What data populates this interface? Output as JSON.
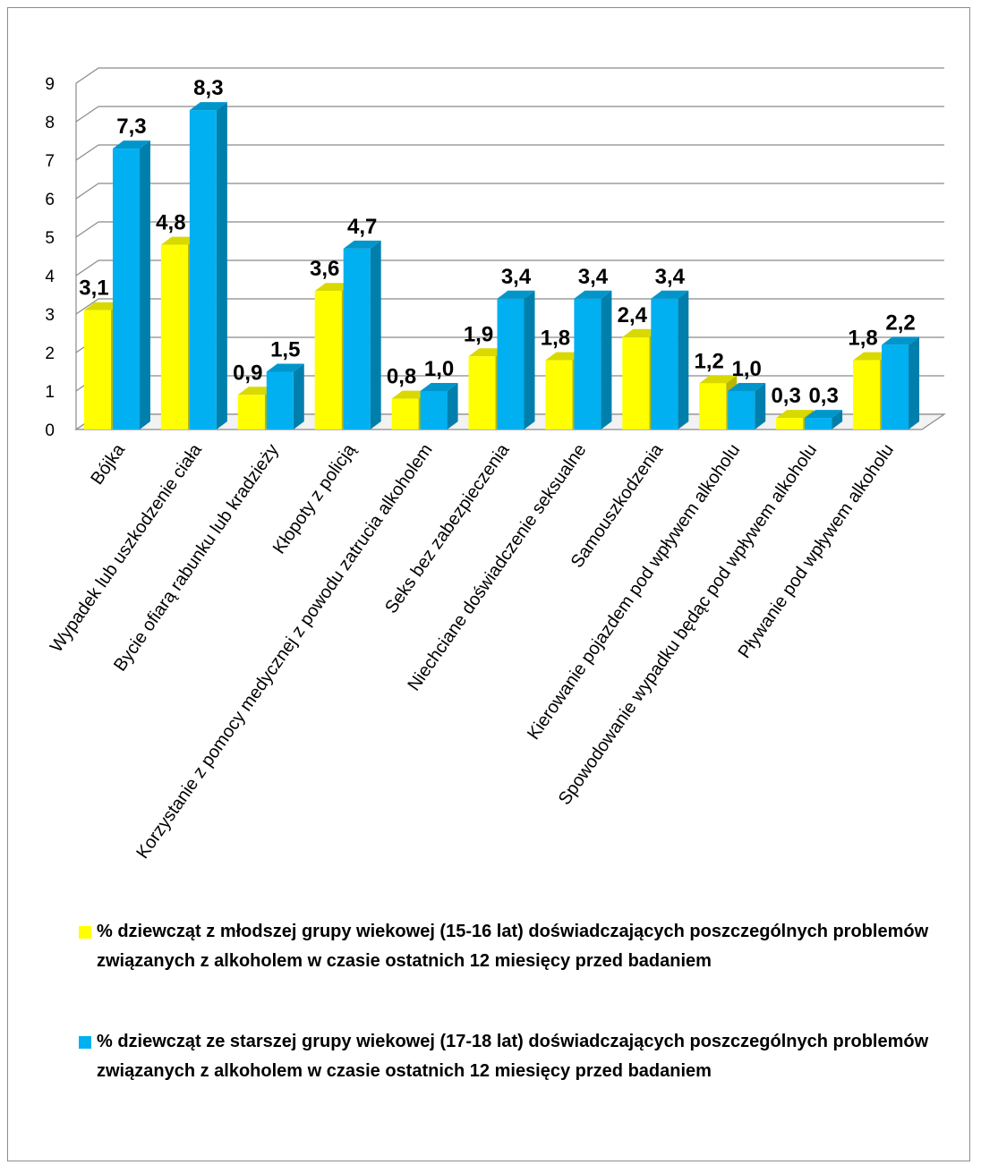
{
  "chart_data": {
    "type": "bar",
    "categories": [
      "Bójka",
      "Wypadek lub uszkodzenie ciała",
      "Bycie ofiarą rabunku lub kradzieży",
      "Kłopoty z policją",
      "Korzystanie z pomocy medycznej z powodu zatrucia alkoholem",
      "Seks bez zabezpieczenia",
      "Niechciane doświadczenie seksualne",
      "Samouszkodzenia",
      "Kierowanie pojazdem  pod wpływem alkoholu",
      "Spowodowanie wypadku będąc pod wpływem alkoholu",
      "Pływanie pod wpływem alkoholu"
    ],
    "series": [
      {
        "name": "% dziewcząt z młodszej grupy wiekowej (15-16 lat) doświadczających poszczególnych problemów związanych z alkoholem w czasie ostatnich 12 miesięcy przed badaniem",
        "color": "#ffff00",
        "values": [
          3.1,
          4.8,
          0.9,
          3.6,
          0.8,
          1.9,
          1.8,
          2.4,
          1.2,
          0.3,
          1.8
        ],
        "labels": [
          "3,1",
          "4,8",
          "0,9",
          "3,6",
          "0,8",
          "1,9",
          "1,8",
          "2,4",
          "1,2",
          "0,3",
          "1,8"
        ]
      },
      {
        "name": "% dziewcząt ze starszej grupy wiekowej (17-18 lat) doświadczających poszczególnych problemów związanych z alkoholem w czasie ostatnich 12 miesięcy przed badaniem",
        "color": "#00b0f0",
        "values": [
          7.3,
          8.3,
          1.5,
          4.7,
          1.0,
          3.4,
          3.4,
          3.4,
          1.0,
          0.3,
          2.2
        ],
        "labels": [
          "7,3",
          "8,3",
          "1,5",
          "4,7",
          "1,0",
          "3,4",
          "3,4",
          "3,4",
          "1,0",
          "0,3",
          "2,2"
        ]
      }
    ],
    "yticks": [
      "0",
      "1",
      "2",
      "3",
      "4",
      "5",
      "6",
      "7",
      "8",
      "9"
    ],
    "ylim": [
      0,
      9
    ],
    "grid": true,
    "legend_position": "bottom",
    "three_d": true
  }
}
